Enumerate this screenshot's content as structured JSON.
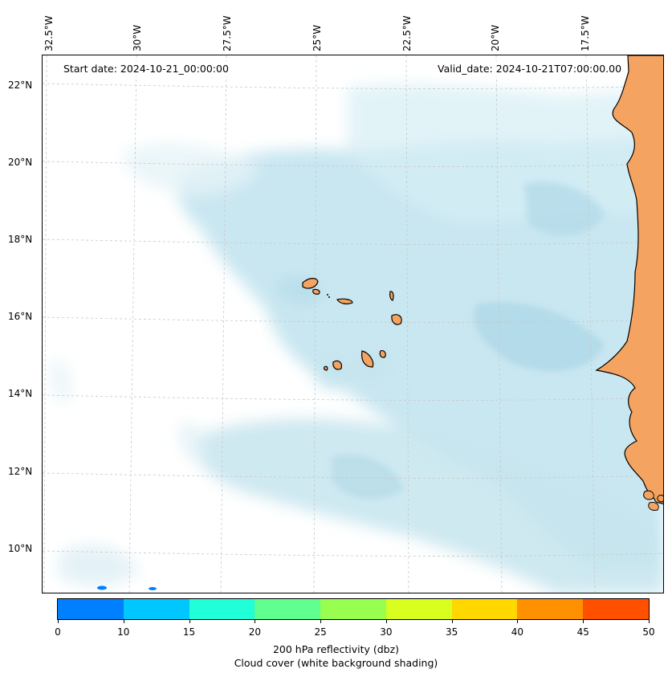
{
  "map": {
    "lon_labels": [
      "32.5°W",
      "30°W",
      "27.5°W",
      "25°W",
      "22.5°W",
      "20°W",
      "17.5°W"
    ],
    "lat_labels": [
      "22°N",
      "20°N",
      "18°N",
      "16°N",
      "14°N",
      "12°N",
      "10°N"
    ],
    "start_date": "Start date: 2024-10-21_00:00:00",
    "valid_date": "Valid_date: 2024-10-21T07:00:00.00",
    "colors": {
      "land": "#f4a460",
      "cloud": "#add8e6",
      "ocean": "#ffffff"
    }
  },
  "colorbar": {
    "ticks": [
      "0",
      "10",
      "15",
      "20",
      "25",
      "30",
      "35",
      "40",
      "45",
      "50"
    ],
    "colors": [
      "#0080ff",
      "#00c8ff",
      "#20ffd8",
      "#60ff90",
      "#98ff50",
      "#d8ff20",
      "#ffd800",
      "#ff9000",
      "#ff5000"
    ],
    "label": "200 hPa reflectivity (dbz)",
    "sublabel": "Cloud cover (white background shading)"
  }
}
